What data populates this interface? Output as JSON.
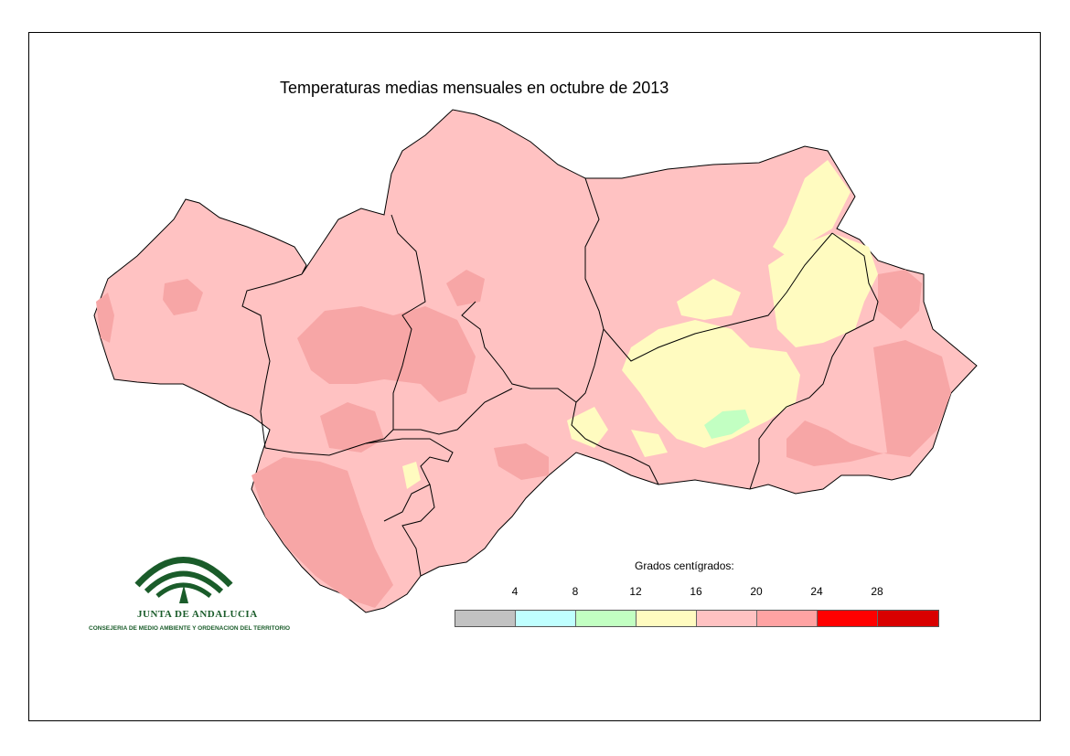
{
  "title": "Temperaturas medias mensuales en octubre de 2013",
  "legend": {
    "title": "Grados centígrados:",
    "ticks": [
      "4",
      "8",
      "12",
      "16",
      "20",
      "24",
      "28"
    ],
    "classes": [
      {
        "range": "< 4",
        "color": "#c2c2c2"
      },
      {
        "range": "4 - 8",
        "color": "#c0ffff"
      },
      {
        "range": "8 - 12",
        "color": "#c2ffc2"
      },
      {
        "range": "12 - 16",
        "color": "#fffbc0"
      },
      {
        "range": "16 - 20",
        "color": "#ffc2c2"
      },
      {
        "range": "20 - 24",
        "color": "#ffa3a3"
      },
      {
        "range": "24 - 28",
        "color": "#ff0000"
      },
      {
        "range": "> 28",
        "color": "#d90000"
      }
    ]
  },
  "map": {
    "region": "Andalucía",
    "provinces": [
      "Huelva",
      "Sevilla",
      "Córdoba",
      "Jaén",
      "Cádiz",
      "Málaga",
      "Granada",
      "Almería"
    ],
    "colors": {
      "base": "#ffc2c2",
      "warm": "#f7a6a6",
      "cool": "#fffbc0",
      "cold": "#c2ffc2",
      "border": "#000000"
    }
  },
  "logo": {
    "name": "JUNTA DE ANDALUCIA",
    "subtitle": "CONSEJERIA DE MEDIO AMBIENTE Y ORDENACION DEL TERRITORIO",
    "color": "#1a5c2a"
  }
}
